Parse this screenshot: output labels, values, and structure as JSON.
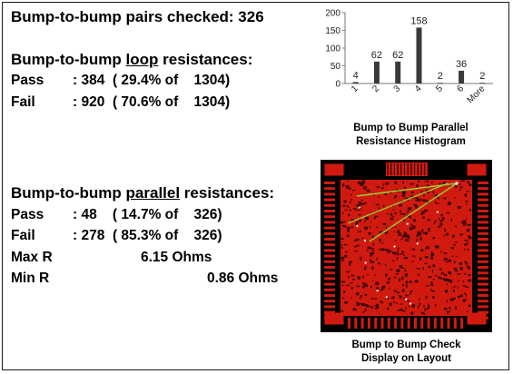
{
  "summary": {
    "pairs_checked": "Bump-to-bump pairs checked: 326"
  },
  "loop": {
    "heading_pre": "Bump-to-bump ",
    "heading_word": "loop",
    "heading_post": " resistances:",
    "pass_label": "Pass",
    "pass_value": ": 384  ( 29.4% of    1304)",
    "fail_label": "Fail",
    "fail_value": ": 920  ( 70.6% of    1304)"
  },
  "parallel": {
    "heading_pre": "Bump-to-bump ",
    "heading_word": "parallel",
    "heading_post": " resistances:",
    "pass_label": "Pass",
    "pass_value": ": 48    ( 14.7% of    326)",
    "fail_label": "Fail",
    "fail_value": ": 278  ( 85.3% of    326)",
    "maxr_label": "Max R",
    "maxr_value": "6.15 Ohms",
    "minr_label": "Min R",
    "minr_value": "0.86 Ohms"
  },
  "chart_data": {
    "type": "bar",
    "categories": [
      "1",
      "2",
      "3",
      "4",
      "5",
      "6",
      "More"
    ],
    "values": [
      4,
      62,
      62,
      158,
      2,
      36,
      2
    ],
    "data_labels": [
      "4",
      "62",
      "62",
      "158",
      "2",
      "36",
      "2"
    ],
    "yticks": [
      "0",
      "50",
      "100",
      "150",
      "200"
    ],
    "ylim": [
      0,
      200
    ],
    "bar_color": "#3a3a3a",
    "caption_line1": "Bump to Bump Parallel",
    "caption_line2": "Resistance Histogram"
  },
  "layout_view": {
    "caption_line1": "Bump to Bump Check",
    "caption_line2": "Display on Layout",
    "fill_color": "#d11a0f",
    "line_color": "#9acd32"
  }
}
